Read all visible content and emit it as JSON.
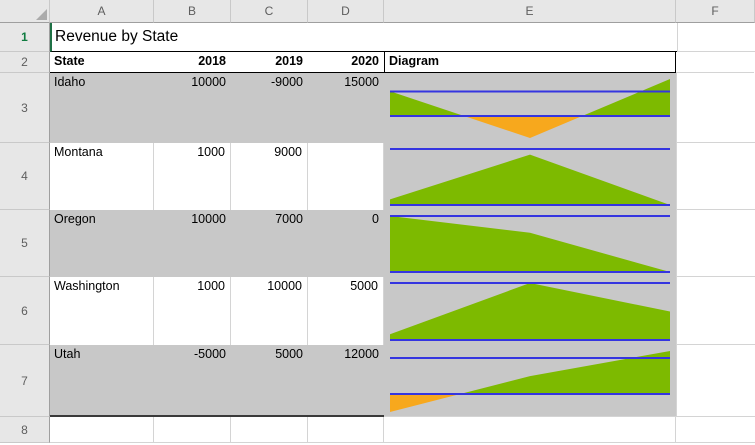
{
  "sheet": {
    "column_headers": [
      "A",
      "B",
      "C",
      "D",
      "E",
      "F"
    ],
    "row_headers": [
      "1",
      "2",
      "3",
      "4",
      "5",
      "6",
      "7",
      "8"
    ],
    "title": "Revenue by State",
    "header_row": {
      "state": "State",
      "y2018": "2018",
      "y2019": "2019",
      "y2020": "2020",
      "diagram": "Diagram"
    },
    "data_rows": [
      {
        "state": "Idaho",
        "values": [
          "10000",
          "-9000",
          "15000"
        ],
        "shaded": true
      },
      {
        "state": "Montana",
        "values": [
          "1000",
          "9000",
          ""
        ],
        "shaded": false
      },
      {
        "state": "Oregon",
        "values": [
          "10000",
          "7000",
          "0"
        ],
        "shaded": true
      },
      {
        "state": "Washington",
        "values": [
          "1000",
          "10000",
          "5000"
        ],
        "shaded": false
      },
      {
        "state": "Utah",
        "values": [
          "-5000",
          "5000",
          "12000"
        ],
        "shaded": true
      }
    ]
  },
  "chart_data": {
    "type": "area",
    "x": [
      "2018",
      "2019",
      "2020"
    ],
    "reference_lines": [
      0,
      10000
    ],
    "legend": "none",
    "grid": "off",
    "series": [
      {
        "name": "Idaho",
        "values": [
          10000,
          -9000,
          15000
        ]
      },
      {
        "name": "Montana",
        "values": [
          1000,
          9000,
          null
        ]
      },
      {
        "name": "Oregon",
        "values": [
          10000,
          7000,
          0
        ]
      },
      {
        "name": "Washington",
        "values": [
          1000,
          10000,
          5000
        ]
      },
      {
        "name": "Utah",
        "values": [
          -5000,
          5000,
          12000
        ]
      }
    ],
    "colors": {
      "positive_fill": "#7DBA00",
      "negative_fill": "#F7A81D",
      "reference_line": "#3535E0",
      "plot_background": "#C8C8C8"
    }
  },
  "colors": {
    "shaded_row": "#C8C8C8",
    "gridline": "#D4D4D4",
    "header_bg": "#E7E7E7",
    "header_text": "#5E5E5E",
    "active_row_header": "#107C41",
    "selection_border": "#1E7145",
    "table_border": "#000000",
    "thick_bottom_border": "#3A3A3A"
  }
}
